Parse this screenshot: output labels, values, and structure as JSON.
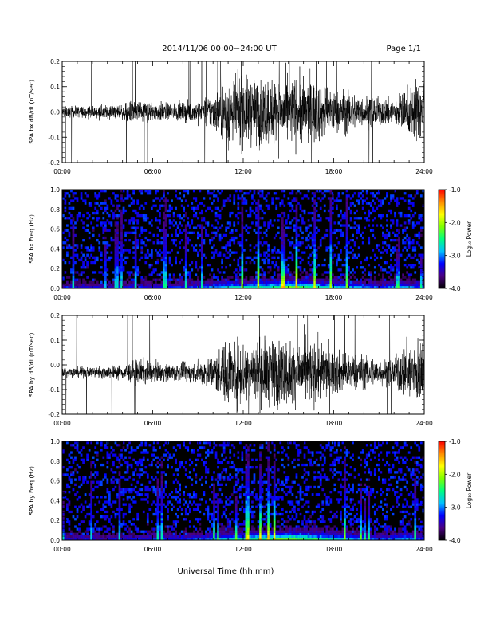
{
  "header": {
    "title": "2014/11/06  00:00−24:00 UT",
    "page": "Page 1/1"
  },
  "x_axis": {
    "label": "Universal Time (hh:mm)",
    "ticks": [
      "00:00",
      "06:00",
      "12:00",
      "18:00",
      "24:00"
    ],
    "range_hours": [
      0,
      24
    ]
  },
  "colorbar": {
    "label": "Log₁₀ Power",
    "ticks": [
      "-1.0",
      "-2.0",
      "-3.0",
      "-4.0"
    ],
    "range": [
      -4.0,
      -1.0
    ],
    "colors": [
      "#000000",
      "#4b0082",
      "#0000ff",
      "#00bfff",
      "#00ff7f",
      "#7fff00",
      "#ffff00",
      "#ff8c00",
      "#ff0000"
    ]
  },
  "chart_data": [
    {
      "type": "line",
      "ylabel": "SPA bx dB/dt (nT/sec)",
      "ylim": [
        -0.2,
        0.2
      ],
      "yticks": [
        "-0.2",
        "-0.1",
        "0.0",
        "0.1",
        "0.2"
      ],
      "x_hours": [
        0,
        2,
        4,
        5,
        6,
        8,
        9,
        10,
        11,
        12,
        13,
        14,
        15,
        16,
        17,
        18,
        19,
        20,
        21,
        22,
        23,
        24
      ],
      "amplitude_envelope": [
        0.03,
        0.035,
        0.045,
        0.08,
        0.06,
        0.05,
        0.07,
        0.1,
        0.2,
        0.2,
        0.2,
        0.2,
        0.2,
        0.2,
        0.18,
        0.13,
        0.12,
        0.1,
        0.08,
        0.08,
        0.15,
        0.2
      ],
      "color": "#000000"
    },
    {
      "type": "heatmap",
      "ylabel": "SPA bx Freq (Hz)",
      "ylim": [
        0.0,
        1.0
      ],
      "yticks": [
        "0.0",
        "0.2",
        "0.4",
        "0.6",
        "0.8",
        "1.0"
      ],
      "x_hours": [
        0,
        3,
        6,
        9,
        11,
        12,
        14,
        15,
        18,
        21,
        23,
        24
      ],
      "low_freq_log_power": [
        -3.2,
        -3.3,
        -3.1,
        -3.0,
        -2.6,
        -2.4,
        -2.2,
        -1.8,
        -2.5,
        -3.0,
        -2.7,
        -3.0
      ],
      "background_log_power": -4.0
    },
    {
      "type": "line",
      "ylabel": "SPA by dB/dt (nT/sec)",
      "ylim": [
        -0.2,
        0.2
      ],
      "yticks": [
        "-0.2",
        "-0.1",
        "0.0",
        "0.1",
        "0.2"
      ],
      "x_hours": [
        0,
        2,
        4,
        5,
        6,
        8,
        9,
        10,
        11,
        12,
        13,
        14,
        15,
        16,
        17,
        18,
        19,
        20,
        21,
        22,
        23,
        24
      ],
      "amplitude_envelope": [
        0.03,
        0.035,
        0.045,
        0.08,
        0.06,
        0.05,
        0.07,
        0.1,
        0.2,
        0.2,
        0.2,
        0.2,
        0.2,
        0.2,
        0.18,
        0.13,
        0.12,
        0.1,
        0.08,
        0.08,
        0.2,
        0.2
      ],
      "offset": -0.03,
      "color": "#000000"
    },
    {
      "type": "heatmap",
      "ylabel": "SPA by Freq (Hz)",
      "ylim": [
        0.0,
        1.0
      ],
      "yticks": [
        "0.0",
        "0.2",
        "0.4",
        "0.6",
        "0.8",
        "1.0"
      ],
      "x_hours": [
        0,
        3,
        6,
        9,
        11,
        12,
        14,
        15,
        18,
        21,
        23,
        24
      ],
      "low_freq_log_power": [
        -3.2,
        -3.3,
        -3.1,
        -3.0,
        -2.6,
        -2.3,
        -2.0,
        -1.7,
        -2.4,
        -3.0,
        -2.7,
        -3.0
      ],
      "background_log_power": -4.0
    }
  ]
}
